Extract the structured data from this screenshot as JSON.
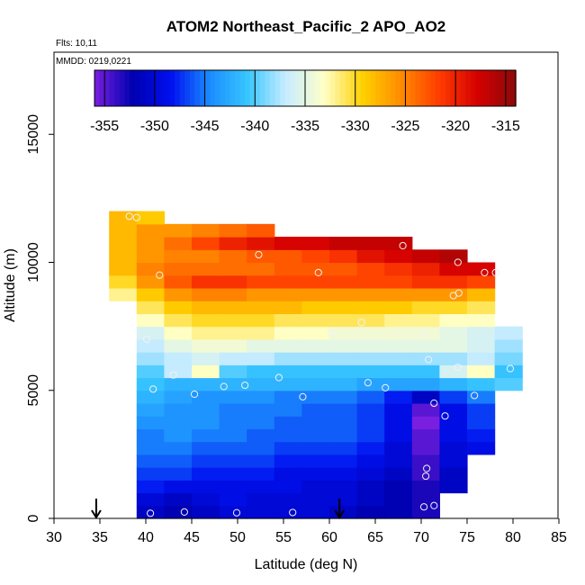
{
  "chart_data": {
    "type": "heatmap",
    "title": "ATOM2 Northeast_Pacific_2 APO_AO2",
    "annotations": {
      "flights": "Flts: 10,11",
      "mmdd": "MMDD: 0219,0221"
    },
    "xlabel": "Latitude (deg N)",
    "ylabel": "Altitude (m)",
    "xlim": [
      30,
      85
    ],
    "ylim": [
      0,
      17500
    ],
    "x_ticks": [
      30,
      35,
      40,
      45,
      50,
      55,
      60,
      65,
      70,
      75,
      80,
      85
    ],
    "y_ticks": [
      0,
      5000,
      10000,
      15000
    ],
    "grid": false,
    "colorbar": {
      "position": "top",
      "range": [
        -356,
        -314
      ],
      "tick_values": [
        -355,
        -350,
        -345,
        -340,
        -335,
        -330,
        -325,
        -320,
        -315
      ],
      "colors": [
        "#7a1fe0",
        "#0000b0",
        "#0010f0",
        "#1a8cff",
        "#38c6ff",
        "#c8ecff",
        "#ffffc8",
        "#ffd000",
        "#ff8c00",
        "#ff3c00",
        "#d40000",
        "#8b0a0a"
      ]
    },
    "heatmap": {
      "x_centers": [
        37.5,
        40.5,
        43.5,
        46.5,
        49.5,
        52.5,
        55.5,
        58.5,
        61.5,
        64.5,
        67.5,
        70.5,
        73.5,
        76.5,
        79.5
      ],
      "y_centers": [
        250,
        750,
        1250,
        1750,
        2250,
        2750,
        3250,
        3750,
        4250,
        4750,
        5250,
        5750,
        6250,
        6750,
        7250,
        7750,
        8250,
        8750,
        9250,
        9750,
        10250,
        10750,
        11250,
        11750
      ],
      "values": [
        [
          null,
          -351,
          -352,
          -351,
          -350,
          -350,
          -350,
          -350,
          -351,
          -352,
          -352,
          -353,
          null,
          null,
          null
        ],
        [
          null,
          -350,
          -351,
          -350,
          -349,
          -350,
          -350,
          -350,
          -350,
          -351,
          -352,
          -353,
          null,
          null,
          null
        ],
        [
          null,
          -348,
          -349,
          -349,
          -349,
          -349,
          -349,
          -350,
          -350,
          -351,
          -352,
          -353,
          -351,
          null,
          null
        ],
        [
          null,
          -347,
          -347,
          -348,
          -348,
          -348,
          -349,
          -349,
          -349,
          -350,
          -351,
          -354,
          -351,
          null,
          null
        ],
        [
          null,
          -346,
          -346,
          -347,
          -347,
          -347,
          -348,
          -348,
          -348,
          -349,
          -350,
          -354,
          -350,
          null,
          null
        ],
        [
          null,
          -345,
          -345,
          -346,
          -346,
          -346,
          -347,
          -347,
          -347,
          -348,
          -350,
          -355,
          -350,
          -349,
          null
        ],
        [
          null,
          -345,
          -344,
          -345,
          -345,
          -346,
          -346,
          -346,
          -346,
          -347,
          -349,
          -355,
          -349,
          -348,
          null
        ],
        [
          null,
          -344,
          -344,
          -344,
          -345,
          -345,
          -346,
          -346,
          -346,
          -347,
          -349,
          -356,
          -349,
          -347,
          null
        ],
        [
          null,
          -343,
          -344,
          -344,
          -345,
          -345,
          -345,
          -346,
          -346,
          -347,
          -349,
          -355,
          -349,
          -347,
          null
        ],
        [
          null,
          -342,
          -343,
          -344,
          -344,
          -344,
          -345,
          -345,
          -345,
          -346,
          -348,
          -351,
          -347,
          -345,
          null
        ],
        [
          null,
          -341,
          -342,
          -342,
          -342,
          -342,
          -342,
          -342,
          -342,
          -343,
          -343,
          -343,
          -342,
          -341,
          -340
        ],
        [
          null,
          -340,
          -337,
          -333,
          -340,
          -341,
          -341,
          -341,
          -341,
          -341,
          -341,
          -341,
          -336,
          -333,
          -341
        ],
        [
          null,
          -338,
          -337,
          -336,
          -337,
          -337,
          -338,
          -338,
          -338,
          -338,
          -338,
          -338,
          -338,
          -337,
          -339
        ],
        [
          null,
          -337,
          -335,
          -334,
          -334,
          -335,
          -335,
          -335,
          -335,
          -335,
          -335,
          -335,
          -335,
          -336,
          -338
        ],
        [
          null,
          -336,
          -333,
          -332,
          -332,
          -332,
          -333,
          -333,
          -334,
          -334,
          -334,
          -334,
          -335,
          -336,
          -337
        ],
        [
          null,
          -333,
          -331,
          -330,
          -330,
          -330,
          -331,
          -331,
          -331,
          -331,
          -332,
          -332,
          -333,
          -333,
          null
        ],
        [
          null,
          -331,
          -329,
          -328,
          -328,
          -328,
          -328,
          -329,
          -329,
          -329,
          -329,
          -330,
          -330,
          -331,
          null
        ],
        [
          -332,
          -329,
          -326,
          -325,
          -325,
          -326,
          -326,
          -326,
          -326,
          -326,
          -326,
          -326,
          -326,
          -328,
          null
        ],
        [
          -330,
          -326,
          -323,
          -321,
          -321,
          -322,
          -322,
          -322,
          -322,
          -322,
          -322,
          -321,
          -321,
          -322,
          null
        ],
        [
          -328,
          -325,
          -324,
          -324,
          -324,
          -324,
          -323,
          -323,
          -323,
          -322,
          -321,
          -320,
          -318,
          -318,
          null
        ],
        [
          -328,
          -326,
          -325,
          -325,
          -324,
          -323,
          -323,
          -322,
          -321,
          -319,
          -318,
          -317,
          -316,
          null,
          null
        ],
        [
          -328,
          -326,
          -324,
          -322,
          -320,
          -319,
          -318,
          -318,
          -317,
          -317,
          -317,
          null,
          null,
          null,
          null
        ],
        [
          -328,
          -326,
          -326,
          -325,
          -324,
          -323,
          null,
          null,
          null,
          null,
          null,
          null,
          null,
          null,
          null
        ],
        [
          -328,
          -329,
          null,
          null,
          null,
          null,
          null,
          null,
          null,
          null,
          null,
          null,
          null,
          null,
          null
        ]
      ]
    },
    "observations": [
      {
        "lat": 38.2,
        "alt": 11800
      },
      {
        "lat": 39.0,
        "alt": 11750
      },
      {
        "lat": 41.5,
        "alt": 9500
      },
      {
        "lat": 52.3,
        "alt": 10300
      },
      {
        "lat": 58.8,
        "alt": 9600
      },
      {
        "lat": 68.0,
        "alt": 10650
      },
      {
        "lat": 74.0,
        "alt": 10000
      },
      {
        "lat": 76.9,
        "alt": 9600
      },
      {
        "lat": 78.1,
        "alt": 9600
      },
      {
        "lat": 73.5,
        "alt": 8700
      },
      {
        "lat": 74.1,
        "alt": 8800
      },
      {
        "lat": 63.5,
        "alt": 7650
      },
      {
        "lat": 60.2,
        "alt": 7250
      },
      {
        "lat": 70.1,
        "alt": 7200
      },
      {
        "lat": 40.1,
        "alt": 7000
      },
      {
        "lat": 70.8,
        "alt": 6200
      },
      {
        "lat": 74.0,
        "alt": 5900
      },
      {
        "lat": 79.7,
        "alt": 5850
      },
      {
        "lat": 43.0,
        "alt": 5600
      },
      {
        "lat": 54.5,
        "alt": 5500
      },
      {
        "lat": 64.2,
        "alt": 5300
      },
      {
        "lat": 40.8,
        "alt": 5050
      },
      {
        "lat": 48.5,
        "alt": 5150
      },
      {
        "lat": 50.8,
        "alt": 5200
      },
      {
        "lat": 66.1,
        "alt": 5100
      },
      {
        "lat": 45.3,
        "alt": 4850
      },
      {
        "lat": 57.1,
        "alt": 4750
      },
      {
        "lat": 75.8,
        "alt": 4800
      },
      {
        "lat": 71.4,
        "alt": 4500
      },
      {
        "lat": 72.6,
        "alt": 4000
      },
      {
        "lat": 70.6,
        "alt": 1950
      },
      {
        "lat": 70.5,
        "alt": 1650
      },
      {
        "lat": 71.4,
        "alt": 500
      },
      {
        "lat": 70.3,
        "alt": 450
      },
      {
        "lat": 40.5,
        "alt": 200
      },
      {
        "lat": 44.2,
        "alt": 250
      },
      {
        "lat": 49.9,
        "alt": 220
      },
      {
        "lat": 56.0,
        "alt": 230
      }
    ],
    "arrows": [
      {
        "lat": 34.6,
        "alt": 0
      },
      {
        "lat": 61.1,
        "alt": 0
      }
    ]
  }
}
